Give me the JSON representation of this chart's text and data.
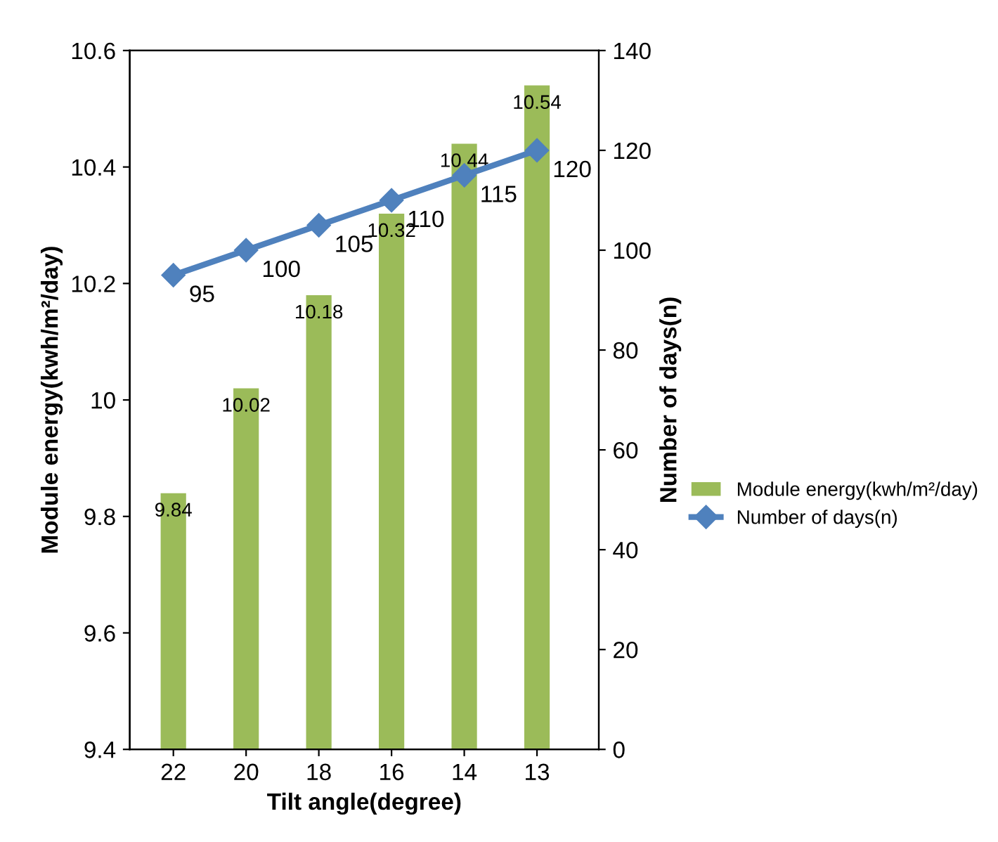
{
  "chart_data": {
    "type": "bar",
    "xlabel": "Tilt angle(degree)",
    "ylabel": "Module energy(kwh/m²/day)",
    "y2label": "Number of days(n)",
    "categories": [
      "22",
      "20",
      "18",
      "16",
      "14",
      "13"
    ],
    "series": [
      {
        "name": "Module energy(kwh/m²/day)",
        "color": "#9bbb59",
        "values": [
          9.84,
          10.02,
          10.18,
          10.32,
          10.44,
          10.54
        ]
      },
      {
        "name": "Number of days(n)",
        "color": "#4f81bd",
        "type": "line",
        "axis": "y2",
        "marker": "diamond",
        "values": [
          95,
          100,
          105,
          110,
          115,
          120
        ]
      }
    ],
    "ylim": [
      9.4,
      10.6
    ],
    "yticks": [
      9.4,
      9.6,
      9.8,
      10,
      10.2,
      10.4,
      10.6
    ],
    "y2lim": [
      0,
      140
    ],
    "y2ticks": [
      0,
      20,
      40,
      60,
      80,
      100,
      120,
      140
    ],
    "data_labels": true,
    "grid": false,
    "legend": "right"
  }
}
